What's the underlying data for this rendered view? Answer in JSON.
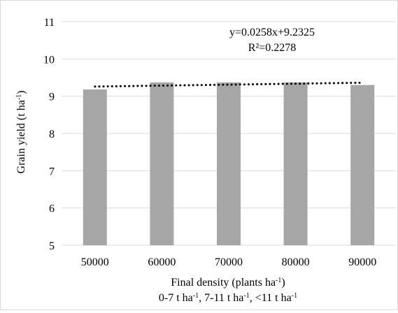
{
  "chart_data": {
    "type": "bar",
    "categories": [
      "50000",
      "60000",
      "70000",
      "80000",
      "90000"
    ],
    "values": [
      9.18,
      9.37,
      9.37,
      9.37,
      9.3
    ],
    "ylim": [
      5,
      11
    ],
    "yticks": [
      "5",
      "6",
      "7",
      "8",
      "9",
      "10",
      "11"
    ],
    "ylabel": {
      "main": "Grain yield (t ha",
      "sup": "-1",
      "close": ")"
    },
    "xlabel": {
      "main": "Final density (plants ha",
      "sup": "-1",
      "close": ")"
    },
    "subtitle": [
      {
        "text": "0-7 t ha",
        "sup": "-1",
        "after": ", "
      },
      {
        "text": "7-11 t ha",
        "sup": "-1",
        "after": ", "
      },
      {
        "text": "<11 t ha",
        "sup": "-1",
        "after": ""
      }
    ],
    "trendline": {
      "style": "dotted",
      "slope": 0.0258,
      "intercept": 9.2325,
      "equation": "y=0.0258x+9.2325",
      "r_squared": "R²=0.2278"
    },
    "grid": true,
    "bar_color": "#a6a6a6",
    "grid_color": "#d9d9d9"
  }
}
